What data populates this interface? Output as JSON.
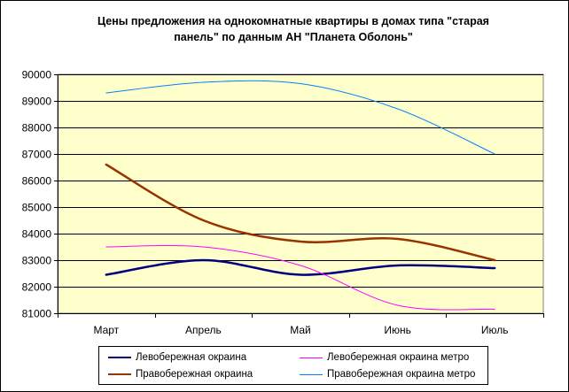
{
  "chart_data": {
    "type": "line",
    "title_lines": [
      "Цены предложения на однокомнатные квартиры в домах типа \"старая",
      "панель\" по данным АН \"Планета Оболонь\""
    ],
    "categories": [
      "Март",
      "Апрель",
      "Май",
      "Июнь",
      "Июль"
    ],
    "ylim": [
      81000,
      90000
    ],
    "yticks": [
      81000,
      82000,
      83000,
      84000,
      85000,
      86000,
      87000,
      88000,
      89000,
      90000
    ],
    "grid": true,
    "legend_position": "bottom",
    "plot_background": "#ffffcc",
    "series": [
      {
        "name": "Левобережная окраина",
        "color": "#000080",
        "width": 2.5,
        "values": [
          82450,
          83000,
          82450,
          82800,
          82700
        ]
      },
      {
        "name": "Левобережная окраина метро",
        "color": "#ff00ff",
        "width": 1,
        "values": [
          83500,
          83500,
          82800,
          81300,
          81150
        ]
      },
      {
        "name": "Правобережная окраина",
        "color": "#993300",
        "width": 2.5,
        "values": [
          86600,
          84500,
          83700,
          83800,
          83000
        ]
      },
      {
        "name": "Правобережная окраина метро",
        "color": "#0080ff",
        "width": 1,
        "values": [
          89300,
          89700,
          89650,
          88700,
          87000
        ]
      }
    ]
  }
}
